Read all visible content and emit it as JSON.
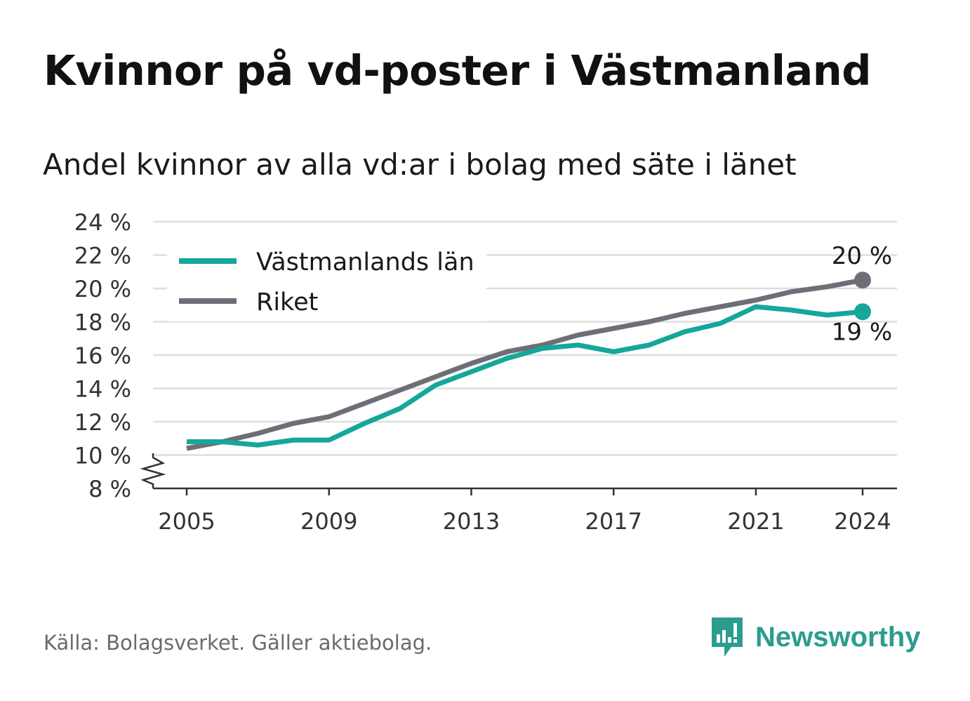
{
  "title": "Kvinnor på vd-poster i Västmanland",
  "subtitle": "Andel kvinnor av alla vd:ar i bolag med säte i länet",
  "source": "Källa: Bolagsverket. Gäller aktiebolag.",
  "brand": {
    "name": "Newsworthy",
    "icon": "newsworthy-logo-icon"
  },
  "colors": {
    "vastmanland": "#14a79a",
    "riket": "#6e6e76",
    "grid": "#dedede",
    "axis": "#333333"
  },
  "chart_data": {
    "type": "line",
    "x": [
      2005,
      2006,
      2007,
      2008,
      2009,
      2010,
      2011,
      2012,
      2013,
      2014,
      2015,
      2016,
      2017,
      2018,
      2019,
      2020,
      2021,
      2022,
      2023,
      2024
    ],
    "series": [
      {
        "name": "Västmanlands län",
        "color": "#14a79a",
        "values": [
          10.8,
          10.8,
          10.6,
          10.9,
          10.9,
          11.9,
          12.8,
          14.2,
          15.0,
          15.8,
          16.4,
          16.6,
          16.2,
          16.6,
          17.4,
          17.9,
          18.9,
          18.7,
          18.4,
          18.6
        ],
        "end_label": "19 %"
      },
      {
        "name": "Riket",
        "color": "#6e6e76",
        "values": [
          10.4,
          10.8,
          11.3,
          11.9,
          12.3,
          13.1,
          13.9,
          14.7,
          15.5,
          16.2,
          16.6,
          17.2,
          17.6,
          18.0,
          18.5,
          18.9,
          19.3,
          19.8,
          20.1,
          20.5
        ],
        "end_label": "20 %"
      }
    ],
    "y_ticks": [
      "8 %",
      "10 %",
      "12 %",
      "14 %",
      "16 %",
      "18 %",
      "20 %",
      "22 %",
      "24 %"
    ],
    "y_tick_values": [
      8,
      10,
      12,
      14,
      16,
      18,
      20,
      22,
      24
    ],
    "x_ticks": [
      "2005",
      "2009",
      "2013",
      "2017",
      "2021",
      "2024"
    ],
    "x_tick_values": [
      2005,
      2009,
      2013,
      2017,
      2021,
      2024
    ],
    "ylim": [
      8,
      24
    ],
    "xlim": [
      2005,
      2024
    ],
    "grid": true,
    "axis_break": true,
    "legend": {
      "placement": "top-left"
    }
  }
}
